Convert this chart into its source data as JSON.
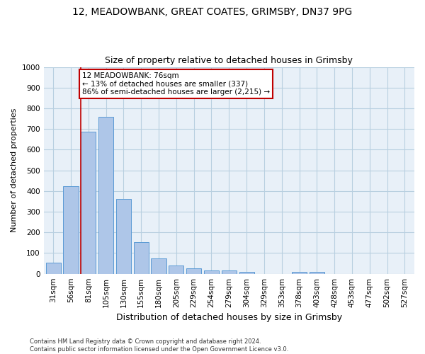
{
  "title_line1": "12, MEADOWBANK, GREAT COATES, GRIMSBY, DN37 9PG",
  "title_line2": "Size of property relative to detached houses in Grimsby",
  "xlabel": "Distribution of detached houses by size in Grimsby",
  "ylabel": "Number of detached properties",
  "categories": [
    "31sqm",
    "56sqm",
    "81sqm",
    "105sqm",
    "130sqm",
    "155sqm",
    "180sqm",
    "205sqm",
    "229sqm",
    "254sqm",
    "279sqm",
    "304sqm",
    "329sqm",
    "353sqm",
    "378sqm",
    "403sqm",
    "428sqm",
    "453sqm",
    "477sqm",
    "502sqm",
    "527sqm"
  ],
  "values": [
    52,
    425,
    688,
    759,
    362,
    154,
    75,
    40,
    28,
    17,
    17,
    10,
    0,
    0,
    9,
    10,
    0,
    0,
    0,
    0,
    0
  ],
  "bar_color": "#aec6e8",
  "bar_edge_color": "#5b9bd5",
  "vline_color": "#c00000",
  "vline_pos": 1.55,
  "annotation_text": "12 MEADOWBANK: 76sqm\n← 13% of detached houses are smaller (337)\n86% of semi-detached houses are larger (2,215) →",
  "annotation_box_color": "#c00000",
  "annotation_text_color": "black",
  "annotation_facecolor": "white",
  "ylim": [
    0,
    1000
  ],
  "yticks": [
    0,
    100,
    200,
    300,
    400,
    500,
    600,
    700,
    800,
    900,
    1000
  ],
  "grid_color": "#b8cfe0",
  "background_color": "#e8f0f8",
  "footnote": "Contains HM Land Registry data © Crown copyright and database right 2024.\nContains public sector information licensed under the Open Government Licence v3.0.",
  "title_fontsize": 10,
  "subtitle_fontsize": 9,
  "ylabel_fontsize": 8,
  "xlabel_fontsize": 9,
  "tick_fontsize": 7.5,
  "annotation_fontsize": 7.5,
  "footnote_fontsize": 6
}
